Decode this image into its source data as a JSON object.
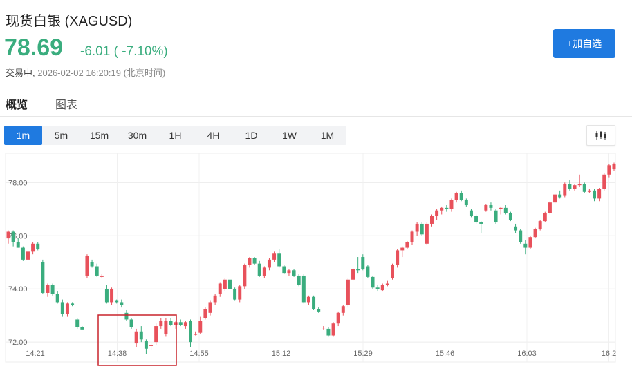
{
  "header": {
    "title": "现货白银",
    "symbol": "(XAGUSD)",
    "price": "78.69",
    "change": "-6.01 ( -7.10%)",
    "status_label": "交易中,",
    "timestamp": "2026-02-02 16:20:19 (北京时间)",
    "add_button": "+加自选",
    "colors": {
      "down": "#3aad7e",
      "up": "#e8515b",
      "accent": "#1f7ae0"
    }
  },
  "tabs": [
    {
      "label": "概览",
      "active": true
    },
    {
      "label": "图表",
      "active": false
    }
  ],
  "intervals": [
    {
      "label": "1m",
      "active": true
    },
    {
      "label": "5m",
      "active": false
    },
    {
      "label": "15m",
      "active": false
    },
    {
      "label": "30m",
      "active": false
    },
    {
      "label": "1H",
      "active": false
    },
    {
      "label": "4H",
      "active": false
    },
    {
      "label": "1D",
      "active": false
    },
    {
      "label": "1W",
      "active": false
    },
    {
      "label": "1M",
      "active": false
    }
  ],
  "chart_type_icon": "candlestick-icon",
  "chart_data": {
    "type": "candlestick",
    "x_ticks": [
      "14:21",
      "14:38",
      "14:55",
      "15:12",
      "15:29",
      "15:46",
      "16:03",
      "16:2"
    ],
    "y_ticks": [
      "72.00",
      "74.00",
      "76.00",
      "78.00"
    ],
    "ylim": [
      71.25,
      79.1
    ],
    "grid": true,
    "up_color": "#e8515b",
    "down_color": "#3aad7e",
    "highlight_box_color": "#c8232c",
    "candles": [
      [
        75.9,
        76.2,
        75.7,
        76.15
      ],
      [
        76.15,
        76.2,
        75.6,
        75.75
      ],
      [
        75.75,
        75.9,
        75.55,
        75.55
      ],
      [
        75.55,
        75.6,
        75.05,
        75.1
      ],
      [
        75.1,
        75.45,
        75.0,
        75.4
      ],
      [
        75.4,
        75.75,
        75.3,
        75.7
      ],
      [
        75.7,
        75.75,
        75.45,
        75.5
      ],
      [
        75.0,
        75.1,
        73.8,
        73.85
      ],
      [
        73.85,
        74.2,
        73.7,
        74.15
      ],
      [
        74.15,
        74.2,
        73.75,
        73.8
      ],
      [
        73.8,
        73.9,
        73.45,
        73.5
      ],
      [
        73.5,
        73.6,
        72.95,
        73.05
      ],
      [
        73.05,
        73.5,
        72.95,
        73.45
      ],
      [
        73.45,
        73.5,
        73.35,
        73.4
      ],
      [
        72.85,
        72.9,
        72.5,
        72.55
      ],
      [
        72.55,
        72.6,
        72.45,
        72.45
      ],
      [
        74.5,
        75.3,
        74.4,
        75.25
      ],
      [
        75.0,
        75.1,
        74.8,
        74.85
      ],
      [
        74.85,
        74.95,
        74.45,
        74.5
      ],
      [
        74.45,
        74.55,
        74.4,
        74.5
      ],
      [
        74.0,
        74.15,
        73.45,
        73.5
      ],
      [
        73.5,
        74.05,
        73.4,
        74.0
      ],
      [
        73.55,
        73.6,
        73.45,
        73.5
      ],
      [
        73.5,
        73.6,
        73.3,
        73.4
      ],
      [
        73.1,
        73.2,
        72.8,
        72.85
      ],
      [
        72.85,
        72.9,
        72.5,
        72.55
      ],
      [
        71.95,
        72.5,
        71.8,
        72.4
      ],
      [
        72.4,
        72.6,
        72.0,
        72.1
      ],
      [
        72.05,
        72.1,
        71.55,
        71.75
      ],
      [
        71.85,
        71.95,
        71.7,
        71.9
      ],
      [
        72.0,
        72.7,
        71.9,
        72.6
      ],
      [
        72.6,
        72.9,
        72.5,
        72.8
      ],
      [
        72.3,
        72.9,
        72.2,
        72.8
      ],
      [
        72.8,
        72.9,
        72.6,
        72.65
      ],
      [
        72.65,
        72.8,
        72.5,
        72.75
      ],
      [
        72.75,
        72.85,
        72.6,
        72.65
      ],
      [
        72.6,
        72.8,
        72.5,
        72.75
      ],
      [
        72.8,
        72.85,
        71.8,
        72.0
      ],
      [
        72.3,
        72.4,
        72.25,
        72.3
      ],
      [
        72.35,
        72.95,
        72.3,
        72.8
      ],
      [
        72.9,
        73.3,
        72.85,
        73.25
      ],
      [
        73.1,
        73.55,
        73.0,
        73.5
      ],
      [
        73.5,
        73.8,
        73.4,
        73.75
      ],
      [
        73.8,
        74.25,
        73.7,
        74.2
      ],
      [
        74.0,
        74.4,
        73.9,
        74.35
      ],
      [
        74.35,
        74.45,
        73.95,
        74.0
      ],
      [
        74.0,
        74.05,
        73.55,
        73.6
      ],
      [
        73.6,
        74.15,
        73.5,
        74.1
      ],
      [
        74.1,
        74.95,
        74.0,
        74.9
      ],
      [
        74.9,
        75.2,
        74.8,
        75.15
      ],
      [
        75.15,
        75.2,
        74.9,
        74.95
      ],
      [
        74.95,
        75.05,
        74.45,
        74.5
      ],
      [
        74.5,
        74.85,
        74.4,
        74.8
      ],
      [
        74.8,
        75.15,
        74.7,
        75.1
      ],
      [
        75.1,
        75.4,
        75.0,
        75.35
      ],
      [
        75.35,
        75.5,
        74.8,
        74.85
      ],
      [
        74.85,
        74.9,
        74.55,
        74.6
      ],
      [
        74.6,
        74.75,
        74.5,
        74.7
      ],
      [
        74.7,
        74.75,
        74.45,
        74.5
      ],
      [
        74.5,
        74.55,
        74.1,
        74.15
      ],
      [
        74.5,
        74.55,
        73.45,
        73.5
      ],
      [
        73.5,
        73.75,
        73.4,
        73.7
      ],
      [
        73.7,
        73.75,
        73.2,
        73.25
      ],
      [
        73.25,
        73.3,
        73.1,
        73.15
      ],
      [
        72.5,
        72.6,
        72.45,
        72.5
      ],
      [
        72.5,
        72.55,
        72.2,
        72.25
      ],
      [
        72.25,
        72.75,
        72.2,
        72.7
      ],
      [
        72.7,
        73.15,
        72.6,
        73.1
      ],
      [
        73.1,
        73.4,
        73.0,
        73.35
      ],
      [
        73.4,
        74.4,
        73.3,
        74.35
      ],
      [
        74.35,
        74.8,
        74.3,
        74.75
      ],
      [
        74.75,
        75.2,
        74.6,
        74.7
      ],
      [
        75.2,
        75.3,
        74.7,
        74.75
      ],
      [
        74.85,
        74.9,
        74.4,
        74.45
      ],
      [
        74.45,
        74.5,
        74.0,
        74.05
      ],
      [
        74.05,
        74.15,
        73.9,
        74.0
      ],
      [
        73.95,
        74.2,
        73.9,
        74.15
      ],
      [
        74.15,
        74.3,
        74.1,
        74.2
      ],
      [
        74.4,
        74.95,
        74.35,
        74.9
      ],
      [
        74.9,
        75.5,
        74.8,
        75.45
      ],
      [
        75.45,
        75.6,
        75.2,
        75.55
      ],
      [
        75.55,
        75.8,
        75.5,
        75.75
      ],
      [
        75.75,
        76.2,
        75.65,
        76.15
      ],
      [
        76.15,
        76.5,
        76.0,
        76.45
      ],
      [
        76.45,
        76.5,
        76.0,
        76.05
      ],
      [
        75.7,
        76.5,
        75.65,
        76.45
      ],
      [
        76.45,
        76.8,
        76.35,
        76.75
      ],
      [
        76.75,
        77.0,
        76.6,
        76.95
      ],
      [
        76.95,
        77.1,
        76.8,
        77.05
      ],
      [
        77.05,
        77.15,
        76.9,
        77.0
      ],
      [
        77.0,
        77.4,
        76.9,
        77.35
      ],
      [
        77.35,
        77.65,
        77.25,
        77.6
      ],
      [
        77.6,
        77.7,
        77.3,
        77.35
      ],
      [
        77.35,
        77.4,
        77.1,
        77.15
      ],
      [
        76.95,
        77.0,
        76.7,
        76.75
      ],
      [
        76.75,
        76.8,
        76.45,
        76.5
      ],
      [
        76.5,
        76.55,
        76.1,
        76.45
      ],
      [
        76.95,
        77.2,
        76.9,
        77.15
      ],
      [
        77.15,
        77.25,
        76.95,
        77.05
      ],
      [
        76.95,
        77.0,
        76.45,
        76.5
      ],
      [
        77.0,
        77.1,
        76.8,
        77.05
      ],
      [
        77.05,
        77.15,
        76.8,
        76.85
      ],
      [
        76.85,
        76.9,
        76.55,
        76.6
      ],
      [
        76.35,
        76.45,
        76.1,
        76.2
      ],
      [
        76.2,
        76.25,
        75.7,
        75.75
      ],
      [
        75.7,
        75.85,
        75.3,
        75.55
      ],
      [
        75.55,
        76.0,
        75.5,
        75.95
      ],
      [
        75.95,
        76.3,
        75.9,
        76.25
      ],
      [
        76.25,
        76.6,
        76.2,
        76.55
      ],
      [
        76.55,
        76.9,
        76.5,
        76.85
      ],
      [
        76.85,
        77.3,
        76.8,
        77.25
      ],
      [
        77.25,
        77.6,
        77.2,
        77.55
      ],
      [
        77.55,
        77.7,
        77.4,
        77.45
      ],
      [
        77.5,
        78.0,
        77.45,
        77.95
      ],
      [
        77.95,
        78.1,
        77.7,
        77.75
      ],
      [
        77.75,
        77.95,
        77.7,
        77.9
      ],
      [
        77.9,
        78.3,
        77.85,
        77.95
      ],
      [
        77.95,
        78.0,
        77.6,
        77.65
      ],
      [
        77.65,
        77.75,
        77.6,
        77.7
      ],
      [
        77.7,
        77.75,
        77.3,
        77.4
      ],
      [
        77.4,
        77.8,
        77.3,
        77.75
      ],
      [
        77.75,
        78.35,
        77.7,
        78.3
      ],
      [
        78.3,
        78.7,
        78.2,
        78.65
      ],
      [
        78.5,
        78.75,
        78.45,
        78.69
      ]
    ]
  }
}
